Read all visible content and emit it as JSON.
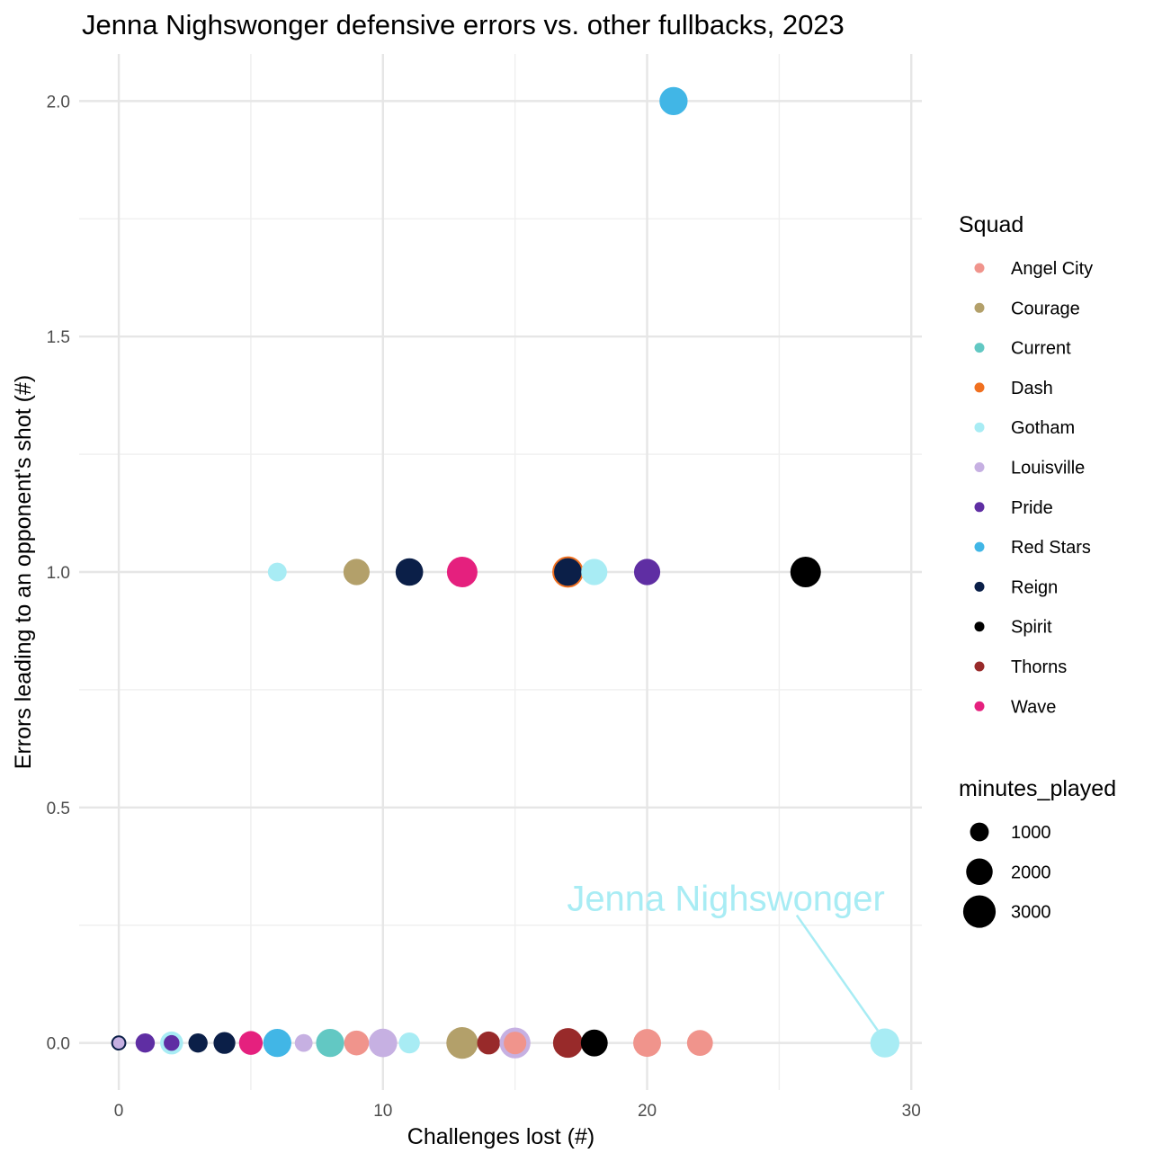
{
  "chart_data": {
    "type": "scatter",
    "title": "Jenna Nighswonger defensive errors vs. other fullbacks, 2023",
    "xlabel": "Challenges lost (#)",
    "ylabel": "Errors leading to an opponent's shot (#)",
    "xlim": [
      -1.5,
      30.4
    ],
    "ylim": [
      -0.1,
      2.1
    ],
    "x_ticks": [
      0,
      10,
      20,
      30
    ],
    "x_tick_labels": [
      "0",
      "10",
      "20",
      "30"
    ],
    "y_ticks": [
      0,
      0.5,
      1,
      1.5,
      2
    ],
    "y_tick_labels": [
      "0.0",
      "0.5",
      "1.0",
      "1.5",
      "2.0"
    ],
    "grid": true,
    "legend_position": "right",
    "color_legend": {
      "title": "Squad",
      "entries": [
        {
          "label": "Angel City",
          "color": "#f0948c"
        },
        {
          "label": "Courage",
          "color": "#b3a06a"
        },
        {
          "label": "Current",
          "color": "#62c8c3"
        },
        {
          "label": "Dash",
          "color": "#f07020"
        },
        {
          "label": "Gotham",
          "color": "#a8ecf4"
        },
        {
          "label": "Louisville",
          "color": "#c6b0e2"
        },
        {
          "label": "Pride",
          "color": "#5f2ea3"
        },
        {
          "label": "Red Stars",
          "color": "#41b6e6"
        },
        {
          "label": "Reign",
          "color": "#0b1f48"
        },
        {
          "label": "Spirit",
          "color": "#000000"
        },
        {
          "label": "Thorns",
          "color": "#982a2a"
        },
        {
          "label": "Wave",
          "color": "#e5207e"
        }
      ]
    },
    "size_legend": {
      "title": "minutes_played",
      "entries": [
        {
          "label": "1000",
          "value": 1000
        },
        {
          "label": "2000",
          "value": 2000
        },
        {
          "label": "3000",
          "value": 3000
        }
      ]
    },
    "annotation": {
      "text": "Jenna Nighswonger",
      "x": 29,
      "y": 0,
      "color": "#a8ecf4"
    },
    "points": [
      {
        "x": 0,
        "y": 0,
        "squad": "Louisville",
        "minutes": 500,
        "outline": "#0b1f48"
      },
      {
        "x": 1,
        "y": 0,
        "squad": "Pride",
        "minutes": 1050
      },
      {
        "x": 2,
        "y": 0,
        "squad": "Gotham",
        "minutes": 1500
      },
      {
        "x": 2,
        "y": 0,
        "squad": "Pride",
        "minutes": 700
      },
      {
        "x": 3,
        "y": 0,
        "squad": "Reign",
        "minutes": 1050
      },
      {
        "x": 4,
        "y": 0,
        "squad": "Reign",
        "minutes": 1350
      },
      {
        "x": 5,
        "y": 0,
        "squad": "Wave",
        "minutes": 1600
      },
      {
        "x": 6,
        "y": 0,
        "squad": "Red Stars",
        "minutes": 2250
      },
      {
        "x": 7,
        "y": 0,
        "squad": "Louisville",
        "minutes": 900
      },
      {
        "x": 8,
        "y": 0,
        "squad": "Current",
        "minutes": 2250
      },
      {
        "x": 9,
        "y": 0,
        "squad": "Angel City",
        "minutes": 1750
      },
      {
        "x": 10,
        "y": 0,
        "squad": "Louisville",
        "minutes": 2300
      },
      {
        "x": 11,
        "y": 0,
        "squad": "Gotham",
        "minutes": 1250
      },
      {
        "x": 13,
        "y": 0,
        "squad": "Courage",
        "minutes": 2850
      },
      {
        "x": 14,
        "y": 0,
        "squad": "Thorns",
        "minutes": 1500
      },
      {
        "x": 15,
        "y": 0,
        "squad": "Louisville",
        "minutes": 2700
      },
      {
        "x": 15,
        "y": 0,
        "squad": "Angel City",
        "minutes": 1450
      },
      {
        "x": 17,
        "y": 0,
        "squad": "Thorns",
        "minutes": 2500
      },
      {
        "x": 18,
        "y": 0,
        "squad": "Spirit",
        "minutes": 2050
      },
      {
        "x": 20,
        "y": 0,
        "squad": "Angel City",
        "minutes": 2200
      },
      {
        "x": 22,
        "y": 0,
        "squad": "Angel City",
        "minutes": 1900
      },
      {
        "x": 29,
        "y": 0,
        "squad": "Gotham",
        "minutes": 2400
      },
      {
        "x": 6,
        "y": 1,
        "squad": "Gotham",
        "minutes": 1000
      },
      {
        "x": 9,
        "y": 1,
        "squad": "Courage",
        "minutes": 1950
      },
      {
        "x": 11,
        "y": 1,
        "squad": "Reign",
        "minutes": 2150
      },
      {
        "x": 13,
        "y": 1,
        "squad": "Wave",
        "minutes": 2650
      },
      {
        "x": 17,
        "y": 1,
        "squad": "Reign",
        "minutes": 2450,
        "outline": "#f07020"
      },
      {
        "x": 18,
        "y": 1,
        "squad": "Gotham",
        "minutes": 1950
      },
      {
        "x": 20,
        "y": 1,
        "squad": "Pride",
        "minutes": 1950
      },
      {
        "x": 26,
        "y": 1,
        "squad": "Spirit",
        "minutes": 2650
      },
      {
        "x": 21,
        "y": 2,
        "squad": "Red Stars",
        "minutes": 2250
      }
    ]
  }
}
